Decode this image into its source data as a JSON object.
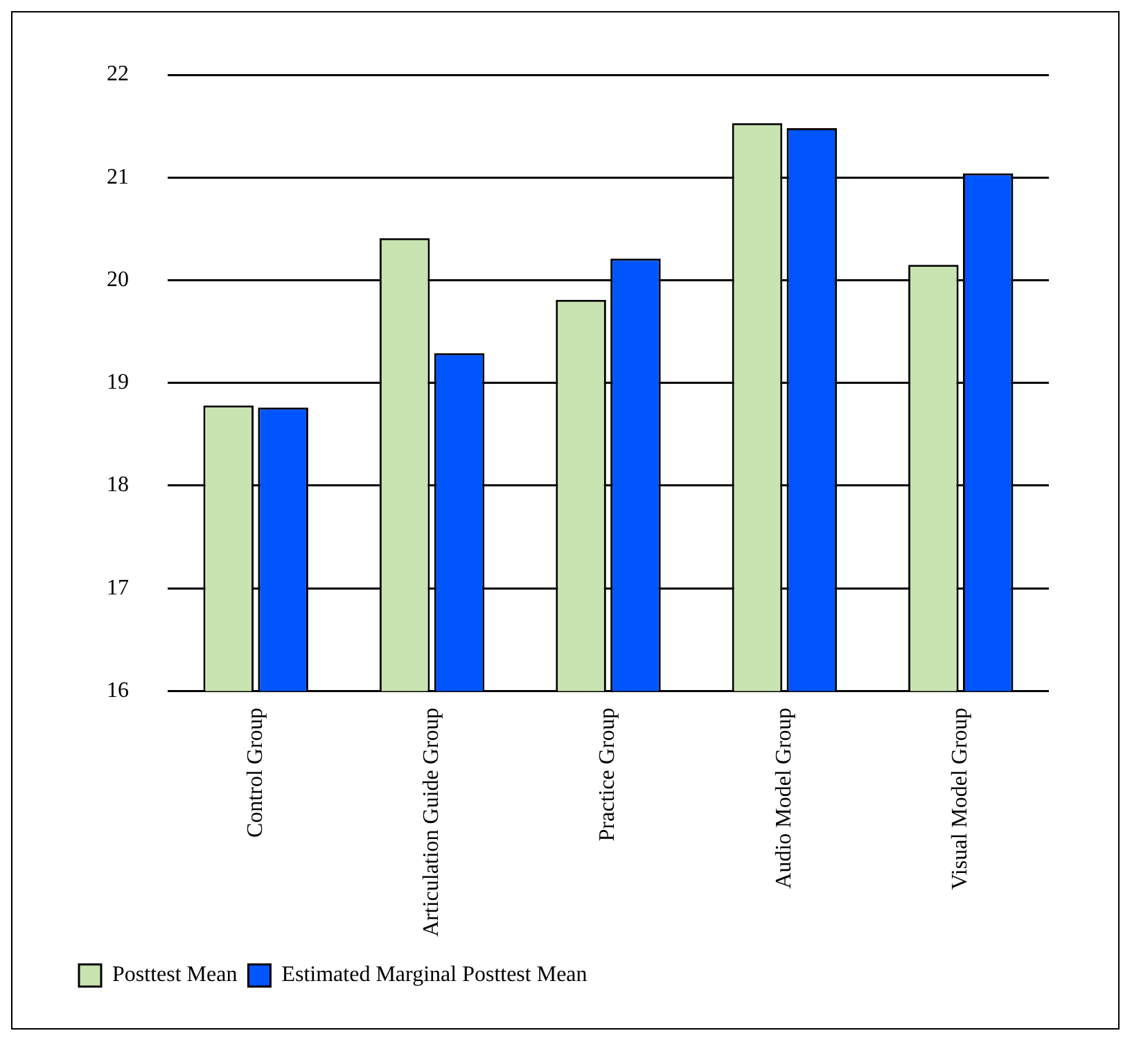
{
  "chart_data": {
    "type": "bar",
    "categories": [
      "Control Group",
      "Articulation Guide Group",
      "Practice Group",
      "Audio Model Group",
      "Visual Model Group"
    ],
    "series": [
      {
        "name": "Posttest Mean",
        "color": "#c9e4b0",
        "values": [
          18.78,
          20.41,
          19.81,
          21.53,
          20.15
        ]
      },
      {
        "name": "Estimated Marginal Posttest Mean",
        "color": "#0055ff",
        "values": [
          18.76,
          19.29,
          20.21,
          21.48,
          21.04
        ]
      }
    ],
    "ylim": [
      16,
      22
    ],
    "yticks": [
      16,
      17,
      18,
      19,
      20,
      21,
      22
    ],
    "grid": "y",
    "legend": "bottom left"
  }
}
